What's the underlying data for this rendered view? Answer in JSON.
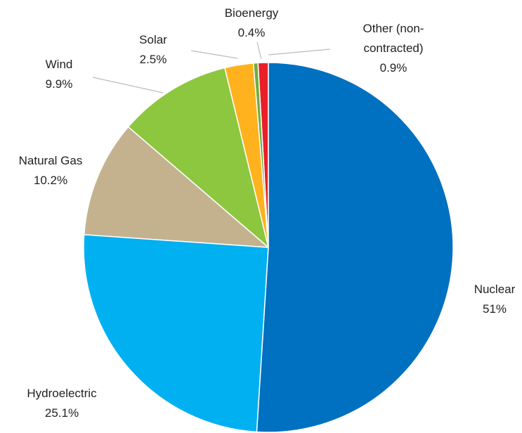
{
  "chart_data": {
    "type": "pie",
    "categories": [
      "Nuclear",
      "Hydroelectric",
      "Natural Gas",
      "Wind",
      "Solar",
      "Bioenergy",
      "Other (non-contracted)"
    ],
    "values": [
      51,
      25.1,
      10.2,
      9.9,
      2.5,
      0.4,
      0.9
    ],
    "value_labels": [
      "51%",
      "25.1%",
      "10.2%",
      "9.9%",
      "2.5%",
      "0.4%",
      "0.9%"
    ],
    "colors": [
      "#0070c0",
      "#00b0f0",
      "#c4b28f",
      "#8dc63f",
      "#ffb21e",
      "#6fae3f",
      "#e8202a"
    ]
  }
}
